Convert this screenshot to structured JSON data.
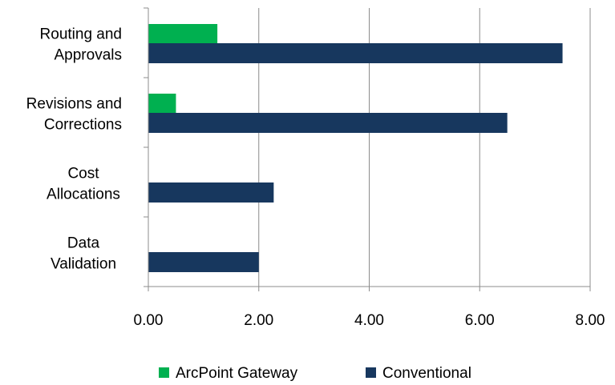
{
  "chart_data": {
    "type": "bar",
    "orientation": "horizontal",
    "categories": [
      [
        "Routing and",
        "Approvals"
      ],
      [
        "Revisions and",
        "Corrections"
      ],
      [
        "Cost",
        "Allocations"
      ],
      [
        "Data",
        "Validation"
      ]
    ],
    "series": [
      {
        "name": "ArcPoint Gateway",
        "color": "#00b050",
        "values": [
          1.25,
          0.5,
          0,
          0
        ]
      },
      {
        "name": "Conventional",
        "color": "#17375e",
        "values": [
          7.5,
          6.5,
          2.27,
          2.0
        ]
      }
    ],
    "xlim": [
      0,
      8
    ],
    "xticks": [
      "0.00",
      "2.00",
      "4.00",
      "6.00",
      "8.00"
    ],
    "grid": true,
    "legend_position": "bottom"
  }
}
